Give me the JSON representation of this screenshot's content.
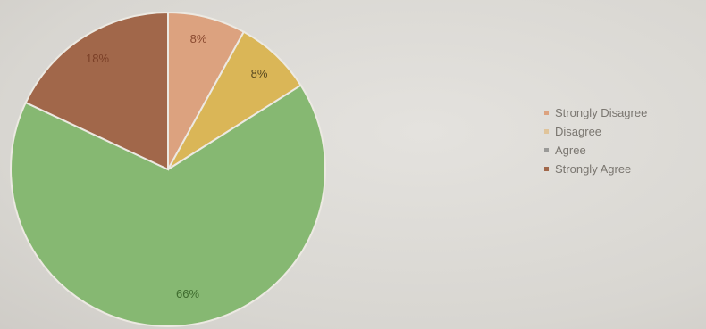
{
  "chart_data": {
    "type": "pie",
    "slices": [
      {
        "name": "Strongly Disagree",
        "value": 8,
        "label": "8%",
        "color": "#dca27f"
      },
      {
        "name": "Disagree",
        "value": 8,
        "label": "8%",
        "color": "#dab657"
      },
      {
        "name": "Agree",
        "value": 66,
        "label": "66%",
        "color": "#86b872"
      },
      {
        "name": "Strongly Agree",
        "value": 18,
        "label": "18%",
        "color": "#a1674a"
      }
    ],
    "legend_position": "right",
    "legend": [
      {
        "label": "Strongly Disagree",
        "color": "#dca27f"
      },
      {
        "label": "Disagree",
        "color": "#e0c49a"
      },
      {
        "label": "Agree",
        "color": "#9a9a98"
      },
      {
        "label": "Strongly Agree",
        "color": "#a1674a"
      }
    ]
  }
}
